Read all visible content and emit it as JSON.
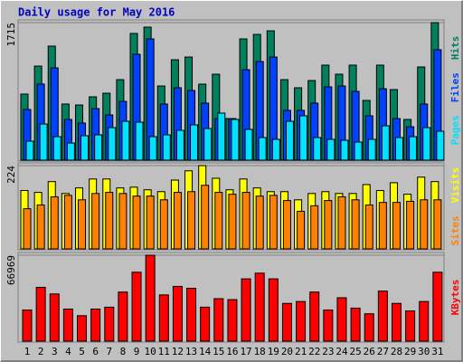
{
  "chart_data": [
    {
      "type": "bar",
      "title": "Daily usage for May 2016",
      "categories": [
        "1",
        "2",
        "3",
        "4",
        "5",
        "6",
        "7",
        "8",
        "9",
        "10",
        "11",
        "12",
        "13",
        "14",
        "15",
        "16",
        "17",
        "18",
        "19",
        "20",
        "21",
        "22",
        "23",
        "24",
        "25",
        "26",
        "27",
        "28",
        "29",
        "30",
        "31"
      ],
      "category_colors": [
        "#00805c",
        "#0000c0",
        "#0000c0",
        "#0000c0",
        "#0000c0",
        "#0000c0",
        "#00805c",
        "#00805c",
        "#0000c0",
        "#0000c0",
        "#0000c0",
        "#0000c0",
        "#0000c0",
        "#00805c",
        "#00805c",
        "#0000c0",
        "#0000c0",
        "#0000c0",
        "#0000c0",
        "#0000c0",
        "#00805c",
        "#00805c",
        "#0000c0",
        "#0000c0",
        "#0000c0",
        "#0000c0",
        "#0000c0",
        "#00805c",
        "#00805c",
        "#0000c0",
        "#0000c0"
      ],
      "ylim": [
        0,
        1715
      ],
      "yticks": [
        1715
      ],
      "series": [
        {
          "name": "Hits",
          "color": "#00805c",
          "values": [
            824,
            1173,
            1422,
            700,
            688,
            790,
            835,
            1004,
            1580,
            1659,
            925,
            1252,
            1286,
            948,
            1072,
            519,
            1512,
            1568,
            1613,
            1004,
            903,
            993,
            1185,
            1072,
            1185,
            745,
            1185,
            880,
            508,
            1162,
            1715
          ]
        },
        {
          "name": "Files",
          "color": "#0040ff",
          "values": [
            632,
            949,
            1151,
            508,
            463,
            643,
            564,
            733,
            1320,
            1512,
            700,
            903,
            869,
            711,
            519,
            519,
            1128,
            1230,
            1286,
            621,
            621,
            711,
            914,
            925,
            858,
            553,
            891,
            519,
            417,
            700,
            1377
          ]
        },
        {
          "name": "Pages",
          "color": "#00e0ff",
          "values": [
            237,
            451,
            293,
            214,
            305,
            316,
            406,
            485,
            474,
            293,
            316,
            372,
            440,
            395,
            587,
            508,
            384,
            282,
            260,
            485,
            553,
            282,
            260,
            248,
            226,
            260,
            429,
            282,
            293,
            406,
            361
          ]
        }
      ]
    },
    {
      "type": "bar",
      "ylim": [
        0,
        224
      ],
      "yticks": [
        224
      ],
      "series": [
        {
          "name": "Visits",
          "color": "#ffff00",
          "values": [
            157,
            152,
            181,
            149,
            164,
            188,
            188,
            164,
            166,
            159,
            154,
            185,
            210,
            224,
            190,
            159,
            188,
            164,
            154,
            154,
            132,
            149,
            154,
            149,
            149,
            173,
            157,
            178,
            147,
            193,
            181
          ]
        },
        {
          "name": "Sites",
          "color": "#ff8000",
          "values": [
            108,
            118,
            140,
            144,
            132,
            149,
            152,
            149,
            142,
            142,
            132,
            152,
            154,
            171,
            152,
            147,
            152,
            142,
            144,
            130,
            101,
            116,
            130,
            140,
            132,
            118,
            125,
            125,
            128,
            132,
            132
          ]
        }
      ]
    },
    {
      "type": "bar",
      "ylim": [
        0,
        66969
      ],
      "yticks": [
        66969
      ],
      "series": [
        {
          "name": "KBytes",
          "color": "#ff0000",
          "values": [
            24285,
            41947,
            36796,
            25021,
            19870,
            25021,
            26493,
            38268,
            53722,
            66969,
            36060,
            42683,
            41211,
            26493,
            33116,
            32381,
            48570,
            52986,
            48570,
            29437,
            30908,
            38268,
            24285,
            33852,
            25757,
            21341,
            39004,
            29437,
            23549,
            30908,
            53722
          ]
        }
      ]
    }
  ]
}
